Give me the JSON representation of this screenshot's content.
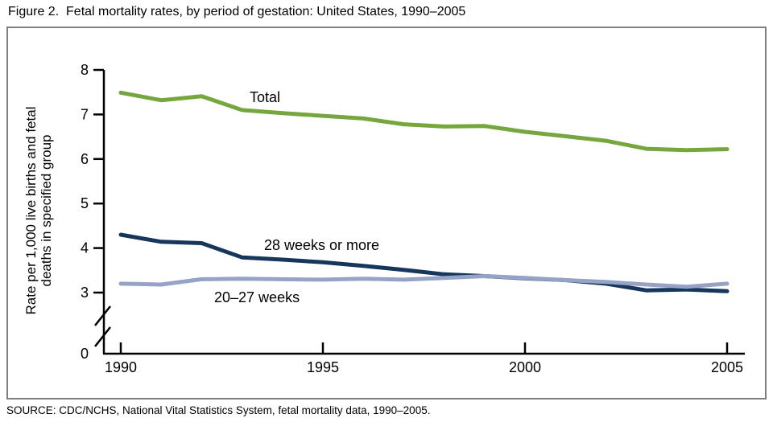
{
  "figure_title": "Figure 2.  Fetal mortality rates, by period of gestation: United States, 1990–2005",
  "source_note": "SOURCE: CDC/NCHS, National Vital Statistics System, fetal mortality data, 1990–2005.",
  "chart_data": {
    "type": "line",
    "title": "Figure 2. Fetal mortality rates, by period of gestation: United States, 1990–2005",
    "xlabel": "",
    "ylabel": "Rate per 1,000 live births and fetal deaths in specified group",
    "ylabel_lines": [
      "Rate per 1,000 live births and fetal",
      "deaths in specified group"
    ],
    "x": [
      1990,
      1991,
      1992,
      1993,
      1994,
      1995,
      1996,
      1997,
      1998,
      1999,
      2000,
      2001,
      2002,
      2003,
      2004,
      2005
    ],
    "x_ticks": [
      1990,
      1995,
      2000,
      2005
    ],
    "y_ticks": [
      8,
      7,
      6,
      5,
      4,
      3
    ],
    "y_origin_label": "0",
    "y_axis_break": true,
    "ylim": [
      3,
      8
    ],
    "grid": false,
    "legend_position": "inline-labels",
    "series": [
      {
        "name": "Total",
        "color": "#76a73e",
        "values": [
          7.49,
          7.32,
          7.41,
          7.1,
          7.03,
          6.97,
          6.91,
          6.78,
          6.73,
          6.74,
          6.61,
          6.51,
          6.41,
          6.23,
          6.2,
          6.22
        ]
      },
      {
        "name": "28 weeks or more",
        "color": "#16365c",
        "values": [
          4.3,
          4.14,
          4.11,
          3.79,
          3.74,
          3.68,
          3.6,
          3.51,
          3.41,
          3.37,
          3.32,
          3.28,
          3.2,
          3.05,
          3.07,
          3.03
        ]
      },
      {
        "name": "20–27 weeks",
        "color": "#95a4c6",
        "values": [
          3.2,
          3.18,
          3.3,
          3.31,
          3.3,
          3.29,
          3.31,
          3.29,
          3.33,
          3.37,
          3.33,
          3.28,
          3.24,
          3.18,
          3.13,
          3.2
        ]
      }
    ],
    "annotations": [
      {
        "text": "Total"
      },
      {
        "text": "28 weeks or more"
      },
      {
        "text": "20–27 weeks"
      }
    ]
  },
  "colors": {
    "frame": "#7f7f7f",
    "axis": "#000000",
    "total_line": "#76a73e",
    "weeks28_line": "#16365c",
    "weeks2027_line": "#95a4c6"
  }
}
